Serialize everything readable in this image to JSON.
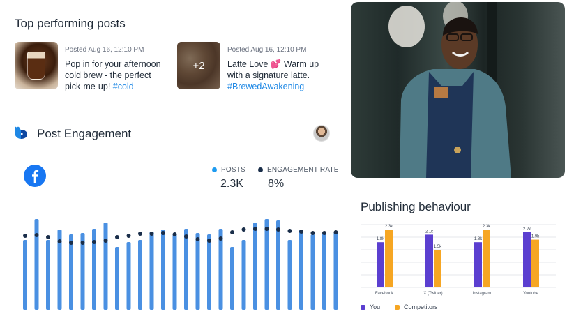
{
  "top_posts": {
    "title": "Top performing posts",
    "posts": [
      {
        "date": "Posted Aug 16, 12:10 PM",
        "text": "Pop in for your afternoon cold brew - the perfect pick-me-up!",
        "hashtag": "#cold",
        "extra": ""
      },
      {
        "date": "Posted Aug 16, 12:10 PM",
        "text": "Latte Love 💕 Warm up with a signature latte.",
        "hashtag": "#BrewedAwakening",
        "extra": "+2"
      }
    ]
  },
  "engagement": {
    "title": "Post Engagement",
    "platform_icon": "facebook-icon",
    "metrics": [
      {
        "label": "POSTS",
        "value": "2.3K",
        "color": "#1e9bf0"
      },
      {
        "label": "ENGAGEMENT RATE",
        "value": "8%",
        "color": "#1a2e4a"
      }
    ],
    "chart_data": {
      "type": "bar",
      "bars": [
        100,
        130,
        100,
        115,
        108,
        110,
        116,
        125,
        90,
        97,
        100,
        112,
        115,
        108,
        116,
        110,
        108,
        116,
        90,
        100,
        125,
        130,
        128,
        100,
        115,
        108,
        110,
        112
      ],
      "rate_points": [
        106,
        107,
        104,
        98,
        96,
        96,
        97,
        99,
        104,
        106,
        109,
        109,
        110,
        108,
        105,
        101,
        99,
        102,
        111,
        115,
        116,
        116,
        115,
        113,
        112,
        110,
        110,
        111
      ],
      "bar_color": "#4a90e2",
      "dot_color": "#1a2e4a"
    }
  },
  "photo": {
    "icon": "barista-photo"
  },
  "publishing": {
    "title": "Publishing behaviour",
    "chart_data": {
      "type": "bar",
      "categories": [
        "Facebook",
        "X (Twitter)",
        "Instagram",
        "Youtube"
      ],
      "series": [
        {
          "name": "You",
          "values": [
            1.8,
            2.1,
            1.8,
            2.2
          ],
          "labels": [
            "1.8k",
            "2.1k",
            "1.8k",
            "2.2k"
          ],
          "color": "#5b3fd0"
        },
        {
          "name": "Competitors",
          "values": [
            2.3,
            1.5,
            2.3,
            1.9
          ],
          "labels": [
            "2.3k",
            "1.5k",
            "2.3k",
            "1.9k"
          ],
          "color": "#f6a623"
        }
      ],
      "ylim": [
        0,
        2.5
      ]
    }
  }
}
